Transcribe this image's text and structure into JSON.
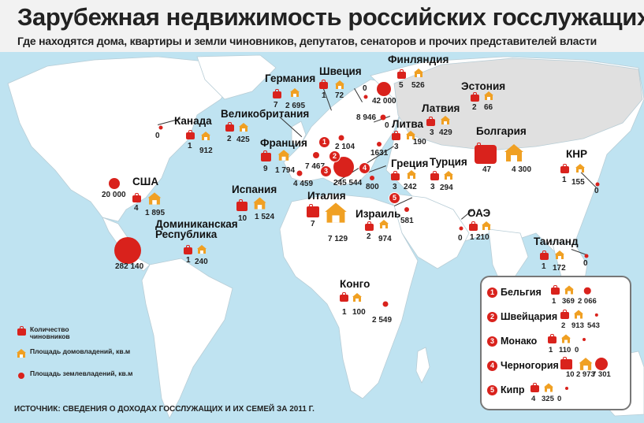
{
  "header": {
    "title": "Зарубежная недвижимость российских госслужащих",
    "subtitle": "Где находятся дома, квартиры и земли чиновников, депутатов, сенаторов и прочих представителей власти"
  },
  "colors": {
    "accent": "#d9221c",
    "house": "#f0a023",
    "sea": "#bfe3f1",
    "land": "#ffffff",
    "land_russia": "#e0e0e0"
  },
  "countries": {
    "canada": {
      "name": "Канада",
      "officials": "1",
      "housing": "912",
      "land": "0"
    },
    "usa": {
      "name": "США",
      "officials": "4",
      "housing": "1 895",
      "land": "20 000"
    },
    "dominican": {
      "name": "Доминиканская Республика",
      "officials": "1",
      "housing": "240",
      "land": "282 140"
    },
    "uk": {
      "name": "Великобритания",
      "officials": "2",
      "housing": "425"
    },
    "france": {
      "name": "Франция",
      "officials": "9",
      "housing": "1 794",
      "land": "7 467"
    },
    "spain": {
      "name": "Испания",
      "officials": "10",
      "housing": "1 524",
      "land": "4 459"
    },
    "germany": {
      "name": "Германия",
      "officials": "7",
      "housing": "2 695",
      "land": "2 104"
    },
    "sweden": {
      "name": "Швеция",
      "officials": "1",
      "housing": "72",
      "land": "0"
    },
    "finland": {
      "name": "Финляндия",
      "officials": "5",
      "housing": "526",
      "land": "42 000"
    },
    "estonia": {
      "name": "Эстония",
      "officials": "2",
      "housing": "66"
    },
    "latvia": {
      "name": "Латвия",
      "officials": "3",
      "housing": "429",
      "land": "8 946"
    },
    "lithuania": {
      "name": "Литва",
      "officials": "3",
      "housing": "190",
      "land": "0"
    },
    "bulgaria": {
      "name": "Болгария",
      "officials": "47",
      "housing": "4 300"
    },
    "italy": {
      "name": "Италия",
      "officials": "7",
      "housing": "7 129",
      "land": "245 544"
    },
    "greece": {
      "name": "Греция",
      "officials": "3",
      "housing": "242",
      "land": "800"
    },
    "turkey": {
      "name": "Турция",
      "officials": "3",
      "housing": "294"
    },
    "italy_extra": {
      "land": "1631"
    },
    "israel": {
      "name": "Израиль",
      "officials": "2",
      "housing": "974",
      "land": "581"
    },
    "uae": {
      "name": "ОАЭ",
      "officials": "1",
      "housing": "210",
      "land": "0"
    },
    "china": {
      "name": "КНР",
      "officials": "1",
      "housing": "155",
      "land": "0"
    },
    "thailand": {
      "name": "Таиланд",
      "officials": "1",
      "housing": "172",
      "land": "0"
    },
    "congo": {
      "name": "Конго",
      "officials": "1",
      "housing": "100",
      "land": "2 549"
    }
  },
  "small_countries": [
    {
      "n": "1",
      "name": "Бельгия",
      "officials": "1",
      "housing": "369",
      "land": "2 066"
    },
    {
      "n": "2",
      "name": "Швейцария",
      "officials": "2",
      "housing": "913",
      "land": "543"
    },
    {
      "n": "3",
      "name": "Монако",
      "officials": "1",
      "housing": "110",
      "land": "0"
    },
    {
      "n": "4",
      "name": "Черногория",
      "officials": "10",
      "housing": "2 973",
      "land": "7 301"
    },
    {
      "n": "5",
      "name": "Кипр",
      "officials": "4",
      "housing": "325",
      "land": "0"
    }
  ],
  "legend": {
    "officials": "Количество чиновников",
    "housing": "Площадь домовладений, кв.м",
    "land": "Площадь землевладений, кв.м"
  },
  "source": "ИСТОЧНИК: СВЕДЕНИЯ О ДОХОДАХ ГОССЛУЖАЩИХ И ИХ СЕМЕЙ ЗА 2011 Г."
}
